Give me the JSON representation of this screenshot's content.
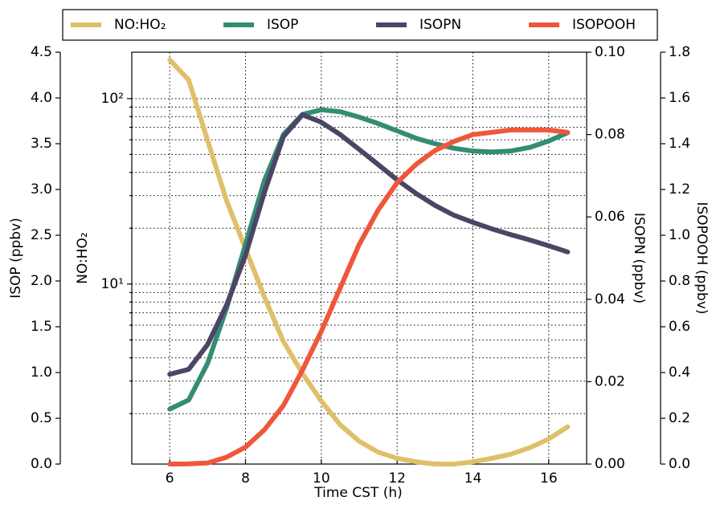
{
  "chart_data": {
    "type": "line",
    "xlabel": "Time CST (h)",
    "x": [
      6,
      6.5,
      7,
      7.5,
      8,
      8.5,
      9,
      9.5,
      10,
      10.5,
      11,
      11.5,
      12,
      12.5,
      13,
      13.5,
      14,
      14.5,
      15,
      15.5,
      16,
      16.5
    ],
    "xlim": [
      5,
      17
    ],
    "xticks": [
      6,
      8,
      10,
      12,
      14,
      16
    ],
    "ylabel": "ISOP (ppbv)",
    "ylim": [
      0,
      4.5
    ],
    "yticks": [
      {
        "value": 0,
        "label": "0.0"
      },
      0.5,
      {
        "value": 1,
        "label": "1.0"
      },
      1.5,
      {
        "value": 2,
        "label": "2.0"
      },
      2.5,
      {
        "value": 3,
        "label": "3.0"
      },
      3.5,
      {
        "value": 4,
        "label": "4.0"
      },
      4.5
    ],
    "y2label": "NO:HO₂",
    "y2scale": "log",
    "y2lim": [
      1.07,
      178
    ],
    "y2ticks": [
      {
        "value": 10,
        "label": "10¹"
      },
      {
        "value": 100,
        "label": "10²"
      }
    ],
    "y2minor": [
      2,
      3,
      4,
      5,
      6,
      7,
      8,
      9,
      20,
      30,
      40,
      50,
      60,
      70,
      80,
      90
    ],
    "y3label": "ISOPN (ppbv)",
    "y3lim": [
      0,
      0.1
    ],
    "y3ticks": [
      {
        "value": 0,
        "label": "0.00"
      },
      {
        "value": 0.02,
        "label": "0.02"
      },
      {
        "value": 0.04,
        "label": "0.04"
      },
      {
        "value": 0.06,
        "label": "0.06"
      },
      {
        "value": 0.08,
        "label": "0.08"
      },
      {
        "value": 0.1,
        "label": "0.10"
      }
    ],
    "y4label": "ISOPOOH (ppbv)",
    "y4lim": [
      0,
      1.8
    ],
    "y4ticks": [
      {
        "value": 0,
        "label": "0.0"
      },
      0.2,
      0.4,
      0.6,
      0.8,
      {
        "value": 1,
        "label": "1.0"
      },
      1.2,
      1.4,
      1.6,
      1.8
    ],
    "grid": true,
    "series": [
      {
        "name": "NO:HO₂",
        "color": "#dfbf6a",
        "axis": "y2",
        "values": [
          162,
          126,
          59.6,
          28.2,
          15.5,
          8.5,
          4.9,
          3.3,
          2.34,
          1.74,
          1.42,
          1.24,
          1.15,
          1.1,
          1.07,
          1.07,
          1.1,
          1.15,
          1.21,
          1.31,
          1.46,
          1.7
        ]
      },
      {
        "name": "ISOP",
        "color": "#348c74",
        "axis": "y",
        "values": [
          0.6,
          0.7,
          1.1,
          1.7,
          2.4,
          3.1,
          3.6,
          3.82,
          3.87,
          3.85,
          3.79,
          3.72,
          3.64,
          3.56,
          3.5,
          3.45,
          3.42,
          3.41,
          3.42,
          3.46,
          3.53,
          3.62
        ]
      },
      {
        "name": "ISOPN",
        "color": "#4b4566",
        "axis": "y3",
        "values": [
          0.0218,
          0.023,
          0.029,
          0.0386,
          0.0507,
          0.066,
          0.0795,
          0.0848,
          0.083,
          0.08,
          0.0764,
          0.0727,
          0.069,
          0.0657,
          0.0628,
          0.0604,
          0.0587,
          0.0571,
          0.0557,
          0.0544,
          0.053,
          0.0515
        ]
      },
      {
        "name": "ISOPOOH",
        "color": "#ef573b",
        "axis": "y4",
        "values": [
          0,
          0.001,
          0.005,
          0.03,
          0.074,
          0.15,
          0.256,
          0.41,
          0.58,
          0.77,
          0.96,
          1.11,
          1.23,
          1.31,
          1.37,
          1.41,
          1.44,
          1.45,
          1.46,
          1.46,
          1.46,
          1.45
        ]
      }
    ]
  }
}
